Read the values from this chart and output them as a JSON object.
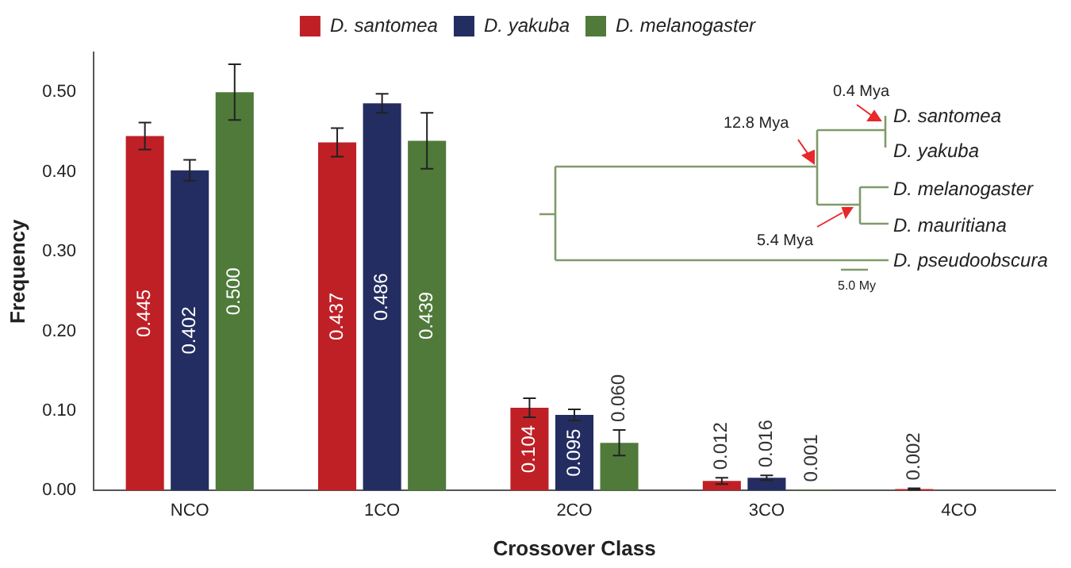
{
  "chart_data": {
    "type": "bar",
    "xlabel": "Crossover Class",
    "ylabel": "Frequency",
    "categories": [
      "NCO",
      "1CO",
      "2CO",
      "3CO",
      "4CO"
    ],
    "series": [
      {
        "name": "D. santomea",
        "color": "#be2026",
        "values": [
          0.445,
          0.437,
          0.104,
          0.012,
          0.002
        ],
        "value_labels": [
          "0.445",
          "0.437",
          "0.104",
          "0.012",
          "0.002"
        ],
        "errors": [
          0.017,
          0.018,
          0.012,
          0.004,
          0.001
        ]
      },
      {
        "name": "D. yakuba",
        "color": "#232d61",
        "values": [
          0.402,
          0.486,
          0.095,
          0.016,
          null
        ],
        "value_labels": [
          "0.402",
          "0.486",
          "0.095",
          "0.016",
          null
        ],
        "errors": [
          0.013,
          0.012,
          0.007,
          0.003,
          null
        ]
      },
      {
        "name": "D. melanogaster",
        "color": "#4f7a3a",
        "values": [
          0.5,
          0.439,
          0.06,
          0.001,
          null
        ],
        "value_labels": [
          "0.500",
          "0.439",
          "0.060",
          "0.001",
          null
        ],
        "errors": [
          0.035,
          0.035,
          0.016,
          null,
          null
        ]
      }
    ],
    "ylim": [
      0,
      0.55
    ],
    "yticks": [
      {
        "value": 0,
        "label": "0.00"
      },
      {
        "value": 0.1,
        "label": "0.10"
      },
      {
        "value": 0.2,
        "label": "0.20"
      },
      {
        "value": 0.3,
        "label": "0.30"
      },
      {
        "value": 0.4,
        "label": "0.40"
      },
      {
        "value": 0.5,
        "label": "0.50"
      }
    ],
    "grid": false,
    "legend": "top",
    "annotations": [
      "0.4 Mya",
      "12.8 Mya",
      "5.4 Mya",
      "D. santomea",
      "D. yakuba",
      "D. melanogaster",
      "D. mauritiana",
      "D. pseudoobscura",
      "5.0 My"
    ]
  }
}
